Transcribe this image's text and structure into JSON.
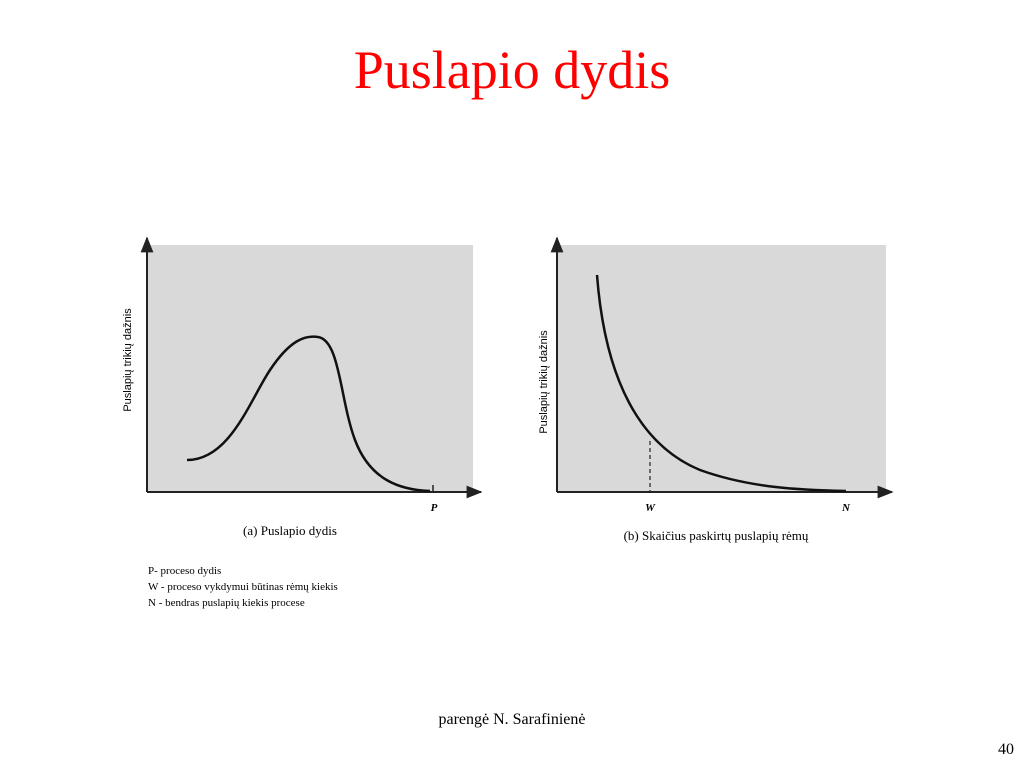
{
  "title": "Puslapio dydis",
  "panels": [
    {
      "y_axis_label": "Puslapių trikių dažnis",
      "x_labels": [
        "P"
      ],
      "caption": "(a) Puslapio dydis"
    },
    {
      "y_axis_label": "Puslapių trikių dažnis",
      "x_labels": [
        "W",
        "N"
      ],
      "caption": "(b) Skaičius paskirtų puslapių rėmų"
    }
  ],
  "notes": [
    "P- proceso dydis",
    "W - proceso vykdymui būtinas rėmų kiekis",
    "N - bendras puslapių kiekis procese"
  ],
  "footer": "parengė N. Sarafinienė",
  "page_number": "40"
}
